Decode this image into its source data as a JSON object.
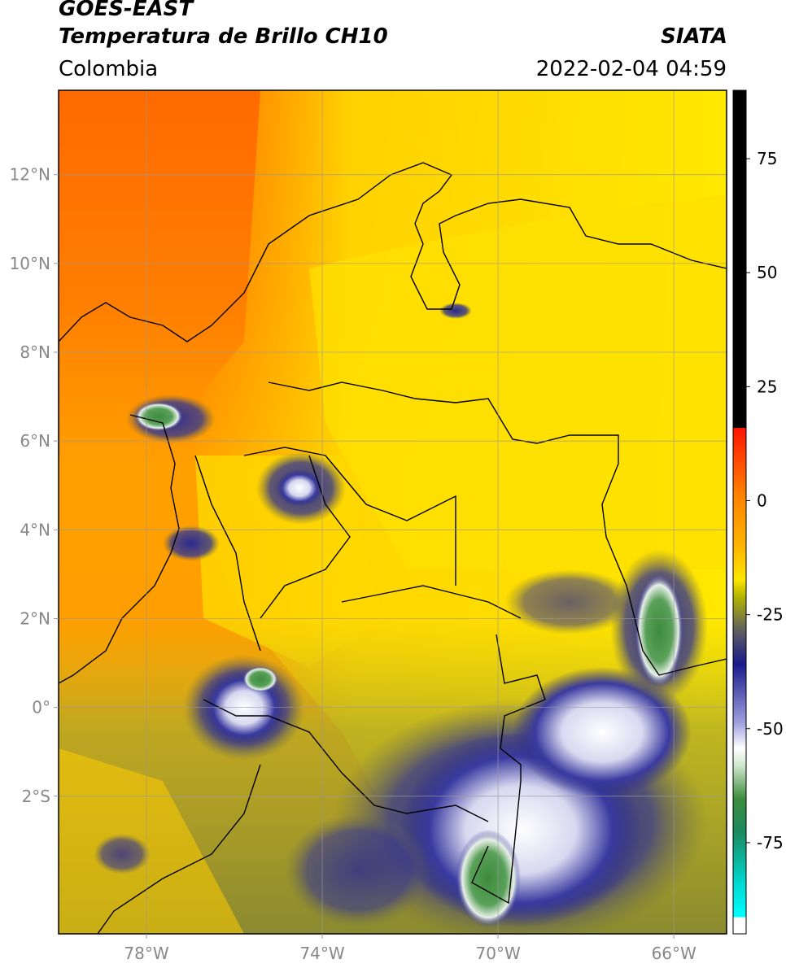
{
  "header": {
    "title_line1": "GOES-EAST",
    "title_line2": "Temperatura de Brillo CH10",
    "source": "SIATA",
    "region": "Colombia",
    "timestamp": "2022-02-04 04:59"
  },
  "map": {
    "lon_range": [
      -80,
      -64.8
    ],
    "lat_range": [
      -5.1,
      13.9
    ],
    "lat_ticks": [
      {
        "value": 12,
        "label": "12°N"
      },
      {
        "value": 10,
        "label": "10°N"
      },
      {
        "value": 8,
        "label": "8°N"
      },
      {
        "value": 6,
        "label": "6°N"
      },
      {
        "value": 4,
        "label": "4°N"
      },
      {
        "value": 2,
        "label": "2°N"
      },
      {
        "value": 0,
        "label": "0°"
      },
      {
        "value": -2,
        "label": "2°S"
      }
    ],
    "lon_ticks": [
      {
        "value": -78,
        "label": "78°W"
      },
      {
        "value": -74,
        "label": "74°W"
      },
      {
        "value": -70,
        "label": "70°W"
      },
      {
        "value": -66,
        "label": "66°W"
      }
    ],
    "gridlines": true
  },
  "colorbar": {
    "range": [
      -95,
      90
    ],
    "ticks": [
      {
        "value": 75,
        "label": "75"
      },
      {
        "value": 50,
        "label": "50"
      },
      {
        "value": 25,
        "label": "25"
      },
      {
        "value": 0,
        "label": "0"
      },
      {
        "value": -25,
        "label": "-25"
      },
      {
        "value": -50,
        "label": "-50"
      },
      {
        "value": -75,
        "label": "-75"
      }
    ],
    "colors": {
      "warm_black": "#000000",
      "red": "#ff2a00",
      "orange": "#ff8c00",
      "yellow": "#ffe600",
      "olive": "#9a9a2a",
      "navy": "#1a1a8c",
      "white": "#ffffff",
      "green": "#3c8c3c",
      "cyan": "#00e0d8"
    }
  }
}
